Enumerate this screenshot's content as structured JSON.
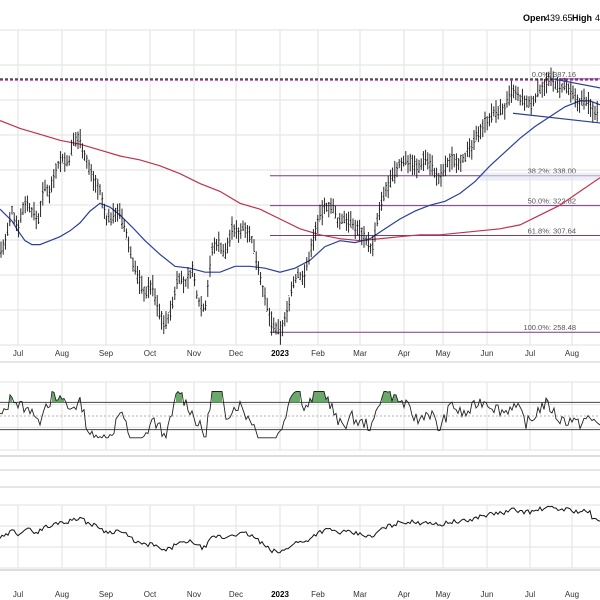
{
  "header": {
    "open_label": "Open",
    "open_value": "439.65",
    "high_label": "High",
    "high_value": "4"
  },
  "colors": {
    "price": "#111111",
    "ma_short": "#2b3f9a",
    "ma_long": "#c0324a",
    "fib_line": "#7a3a8a",
    "resistance_magenta": "#c800c8",
    "resistance_green": "#2a6a2a",
    "indicator_fill": "#4f9a4f",
    "grid": "#e2e2e2"
  },
  "chart_data": [
    {
      "type": "ohlc",
      "panel": "price",
      "x_labels": [
        "Jul",
        "Aug",
        "Sep",
        "Oct",
        "Nov",
        "Dec",
        "2023",
        "Feb",
        "Mar",
        "Apr",
        "May",
        "Jun",
        "Jul",
        "Aug"
      ],
      "bold_label": "2023",
      "fib_levels": [
        {
          "label": "0.0%: 387.16",
          "value": 387.16
        },
        {
          "label": "38.2%: 338.00",
          "value": 338.0
        },
        {
          "label": "50.0%: 322.82",
          "value": 322.82
        },
        {
          "label": "61.8%: 307.64",
          "value": 307.64
        },
        {
          "label": "100.0%: 258.48",
          "value": 258.48
        }
      ],
      "y_range": [
        252,
        412
      ],
      "price_path": [
        [
          0,
          300
        ],
        [
          5,
          303
        ],
        [
          12,
          320
        ],
        [
          18,
          312
        ],
        [
          25,
          325
        ],
        [
          31,
          321
        ],
        [
          38,
          315
        ],
        [
          44,
          332
        ],
        [
          50,
          330
        ],
        [
          56,
          342
        ],
        [
          62,
          347
        ],
        [
          68,
          344
        ],
        [
          74,
          356
        ],
        [
          80,
          357
        ],
        [
          86,
          346
        ],
        [
          92,
          338
        ],
        [
          100,
          330
        ],
        [
          106,
          316
        ],
        [
          112,
          317
        ],
        [
          118,
          321
        ],
        [
          125,
          311
        ],
        [
          132,
          296
        ],
        [
          138,
          286
        ],
        [
          145,
          278
        ],
        [
          152,
          283
        ],
        [
          158,
          270
        ],
        [
          165,
          262
        ],
        [
          172,
          271
        ],
        [
          178,
          288
        ],
        [
          185,
          282
        ],
        [
          192,
          291
        ],
        [
          198,
          275
        ],
        [
          205,
          270
        ],
        [
          212,
          300
        ],
        [
          218,
          305
        ],
        [
          225,
          298
        ],
        [
          232,
          311
        ],
        [
          238,
          309
        ],
        [
          245,
          313
        ],
        [
          252,
          305
        ],
        [
          258,
          293
        ],
        [
          265,
          275
        ],
        [
          272,
          262
        ],
        [
          280,
          258
        ],
        [
          286,
          266
        ],
        [
          292,
          282
        ],
        [
          298,
          288
        ],
        [
          304,
          286
        ],
        [
          311,
          301
        ],
        [
          318,
          315
        ],
        [
          325,
          322
        ],
        [
          332,
          323
        ],
        [
          338,
          314
        ],
        [
          345,
          317
        ],
        [
          352,
          313
        ],
        [
          358,
          311
        ],
        [
          365,
          307
        ],
        [
          372,
          300
        ],
        [
          378,
          317
        ],
        [
          385,
          330
        ],
        [
          392,
          336
        ],
        [
          398,
          343
        ],
        [
          405,
          346
        ],
        [
          412,
          345
        ],
        [
          418,
          341
        ],
        [
          425,
          348
        ],
        [
          432,
          343
        ],
        [
          438,
          335
        ],
        [
          445,
          342
        ],
        [
          452,
          347
        ],
        [
          458,
          345
        ],
        [
          465,
          348
        ],
        [
          472,
          352
        ],
        [
          478,
          360
        ],
        [
          485,
          365
        ],
        [
          492,
          369
        ],
        [
          498,
          371
        ],
        [
          505,
          372
        ],
        [
          512,
          381
        ],
        [
          518,
          378
        ],
        [
          525,
          375
        ],
        [
          532,
          374
        ],
        [
          538,
          381
        ],
        [
          545,
          385
        ],
        [
          552,
          387
        ],
        [
          558,
          382
        ],
        [
          565,
          383
        ],
        [
          572,
          379
        ],
        [
          578,
          375
        ],
        [
          585,
          377
        ],
        [
          592,
          371
        ],
        [
          600,
          371
        ]
      ],
      "ma_short_path": [
        [
          0,
          321
        ],
        [
          6,
          318
        ],
        [
          12,
          315
        ],
        [
          18,
          310
        ],
        [
          25,
          305
        ],
        [
          32,
          303
        ],
        [
          40,
          303
        ],
        [
          50,
          305
        ],
        [
          60,
          307
        ],
        [
          70,
          310
        ],
        [
          80,
          314
        ],
        [
          90,
          320
        ],
        [
          100,
          324
        ],
        [
          110,
          322
        ],
        [
          120,
          318
        ],
        [
          132,
          312
        ],
        [
          145,
          305
        ],
        [
          160,
          298
        ],
        [
          175,
          292
        ],
        [
          190,
          291
        ],
        [
          205,
          289
        ],
        [
          220,
          289
        ],
        [
          235,
          292
        ],
        [
          250,
          292
        ],
        [
          265,
          291
        ],
        [
          280,
          289
        ],
        [
          295,
          291
        ],
        [
          310,
          295
        ],
        [
          325,
          302
        ],
        [
          340,
          305
        ],
        [
          355,
          304
        ],
        [
          370,
          306
        ],
        [
          385,
          311
        ],
        [
          400,
          316
        ],
        [
          415,
          320
        ],
        [
          430,
          323
        ],
        [
          445,
          325
        ],
        [
          460,
          329
        ],
        [
          475,
          335
        ],
        [
          490,
          343
        ],
        [
          505,
          350
        ],
        [
          520,
          357
        ],
        [
          535,
          363
        ],
        [
          550,
          368
        ],
        [
          565,
          373
        ],
        [
          580,
          376
        ],
        [
          590,
          376
        ],
        [
          600,
          374
        ]
      ],
      "ma_long_path": [
        [
          0,
          366
        ],
        [
          20,
          362
        ],
        [
          40,
          359
        ],
        [
          60,
          356
        ],
        [
          80,
          354
        ],
        [
          100,
          351
        ],
        [
          120,
          348
        ],
        [
          140,
          346
        ],
        [
          160,
          343
        ],
        [
          180,
          339
        ],
        [
          200,
          334
        ],
        [
          220,
          330
        ],
        [
          240,
          324
        ],
        [
          260,
          321
        ],
        [
          280,
          316
        ],
        [
          300,
          311
        ],
        [
          320,
          308
        ],
        [
          340,
          306
        ],
        [
          360,
          305
        ],
        [
          380,
          306
        ],
        [
          400,
          307
        ],
        [
          420,
          308
        ],
        [
          440,
          308
        ],
        [
          460,
          309
        ],
        [
          480,
          310
        ],
        [
          500,
          311
        ],
        [
          520,
          313
        ],
        [
          540,
          318
        ],
        [
          560,
          323
        ],
        [
          580,
          330
        ],
        [
          600,
          337
        ]
      ],
      "trendline_upper": [
        [
          553,
          387.16
        ],
        [
          600,
          382.6
        ]
      ],
      "trendline_lower": [
        [
          513,
          369.7
        ],
        [
          600,
          364.8
        ]
      ]
    },
    {
      "type": "line",
      "panel": "momentum",
      "notes": "oscillator with threshold bands, green fills above upper band",
      "y_range": [
        0,
        100
      ],
      "bands": [
        70,
        50,
        30
      ]
    },
    {
      "type": "line",
      "panel": "relative",
      "x_labels": [
        "Jul",
        "Aug",
        "Sep",
        "Oct",
        "Nov",
        "Dec",
        "2023",
        "Feb",
        "Mar",
        "Apr",
        "May",
        "Jun",
        "Jul",
        "Aug"
      ],
      "bold_label": "2023",
      "y_range": [
        0,
        100
      ]
    }
  ]
}
